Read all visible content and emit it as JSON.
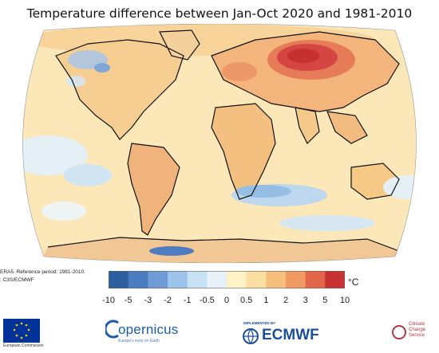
{
  "title": "Temperature difference between Jan-Oct 2020 and 1981-2010",
  "credit_line1": "ERA5.  Reference period: 1981-2010.",
  "credit_line2": ": C3S/ECMWF",
  "colorbar": {
    "unit": "°C",
    "labels": [
      "-10",
      "-5",
      "-3",
      "-2",
      "-1",
      "-0.5",
      "0",
      "0.5",
      "1",
      "2",
      "3",
      "5",
      "10"
    ],
    "colors": [
      "#2c5f9e",
      "#4a7cc0",
      "#6e9bd6",
      "#9bc3ec",
      "#c7e2f4",
      "#e7f1f7",
      "#fdf1c6",
      "#fbdea1",
      "#f6bf7d",
      "#ef9a62",
      "#e1664a",
      "#c93232"
    ]
  },
  "map": {
    "ocean_base": "#fbe7b8",
    "land_base": "#f7cf93",
    "anomaly_hotspot": "Siberia",
    "hotspot_color": "#d83b3c"
  },
  "footer": {
    "eu_caption": "European Commission",
    "copernicus_name": "opernicus",
    "copernicus_sub": "Europe's eyes on Earth",
    "ecmwf_prefix": "IMPLEMENTED BY",
    "ecmwf_name": "ECMWF",
    "c3s_name": "Climate Change Service"
  }
}
